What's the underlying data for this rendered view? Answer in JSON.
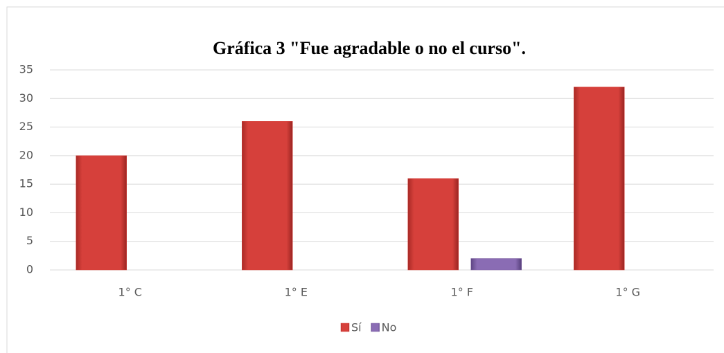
{
  "chart_data": {
    "type": "bar",
    "title": "Gráfica 3 \"Fue agradable o no el curso\".",
    "categories": [
      "1° C",
      "1° E",
      "1° F",
      "1° G"
    ],
    "series": [
      {
        "name": "Sí",
        "color": "#d6403b",
        "values": [
          20,
          26,
          16,
          32
        ]
      },
      {
        "name": "No",
        "color": "#8064a2",
        "values": [
          0,
          0,
          2,
          0
        ]
      }
    ],
    "ylim": [
      0,
      35
    ],
    "yticks": [
      0,
      5,
      10,
      15,
      20,
      25,
      30,
      35
    ],
    "grid": true,
    "legend": "bottom"
  }
}
